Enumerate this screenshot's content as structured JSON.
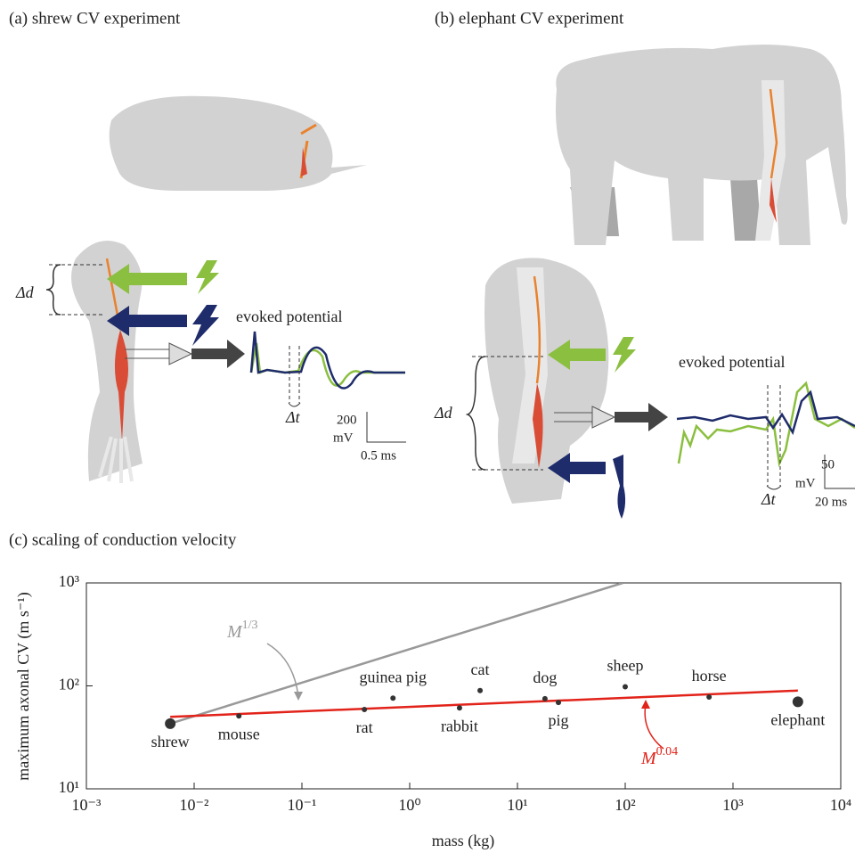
{
  "panel_a": {
    "title": "(a) shrew CV experiment",
    "delta_d": "Δd",
    "evoked": "evoked potential",
    "delta_t": "Δt",
    "scale_v": "200",
    "scale_v_unit": "mV",
    "scale_t": "0.5 ms"
  },
  "panel_b": {
    "title": "(b) elephant CV experiment",
    "delta_d": "Δd",
    "evoked": "evoked potential",
    "delta_t": "Δt",
    "scale_v": "50",
    "scale_v_unit": "mV",
    "scale_t": "20 ms"
  },
  "chart_data": {
    "type": "scatter",
    "title": "(c) scaling of conduction velocity",
    "x_label": "mass (kg)",
    "y_label": "maximum axonal CV (m s⁻¹)",
    "log_x": true,
    "log_y": true,
    "xlim": [
      0.001,
      10000
    ],
    "ylim": [
      10,
      1000
    ],
    "xticks": [
      {
        "value": 0.001,
        "label": "10⁻³"
      },
      {
        "value": 0.01,
        "label": "10⁻²"
      },
      {
        "value": 0.1,
        "label": "10⁻¹"
      },
      {
        "value": 1,
        "label": "10⁰"
      },
      {
        "value": 10,
        "label": "10¹"
      },
      {
        "value": 100,
        "label": "10²"
      },
      {
        "value": 1000,
        "label": "10³"
      },
      {
        "value": 10000,
        "label": "10⁴"
      }
    ],
    "yticks": [
      {
        "value": 10,
        "label": "10¹"
      },
      {
        "value": 100,
        "label": "10²"
      },
      {
        "value": 1000,
        "label": "10³"
      }
    ],
    "points": {
      "names": [
        "shrew",
        "mouse",
        "rat",
        "guinea pig",
        "rabbit",
        "cat",
        "dog",
        "pig",
        "sheep",
        "horse",
        "elephant"
      ],
      "x": [
        0.006,
        0.026,
        0.38,
        0.7,
        2.9,
        4.5,
        18,
        24,
        100,
        600,
        4000
      ],
      "values": [
        43,
        51,
        59,
        76,
        61,
        90,
        75,
        69,
        98,
        78,
        70
      ],
      "marker_sizes": [
        6,
        3,
        3,
        3,
        3,
        3,
        3,
        3,
        3,
        3,
        6
      ],
      "color": "#333333"
    },
    "lines": [
      {
        "x": [
          0.006,
          95
        ],
        "values": [
          43,
          1000
        ],
        "color": "#999999",
        "label": {
          "base": "M",
          "exponent": "1/3"
        }
      },
      {
        "x": [
          0.006,
          4000
        ],
        "values": [
          50,
          90
        ],
        "color": "#e2231a",
        "label": {
          "base": "M",
          "exponent": "0.04"
        }
      }
    ]
  }
}
